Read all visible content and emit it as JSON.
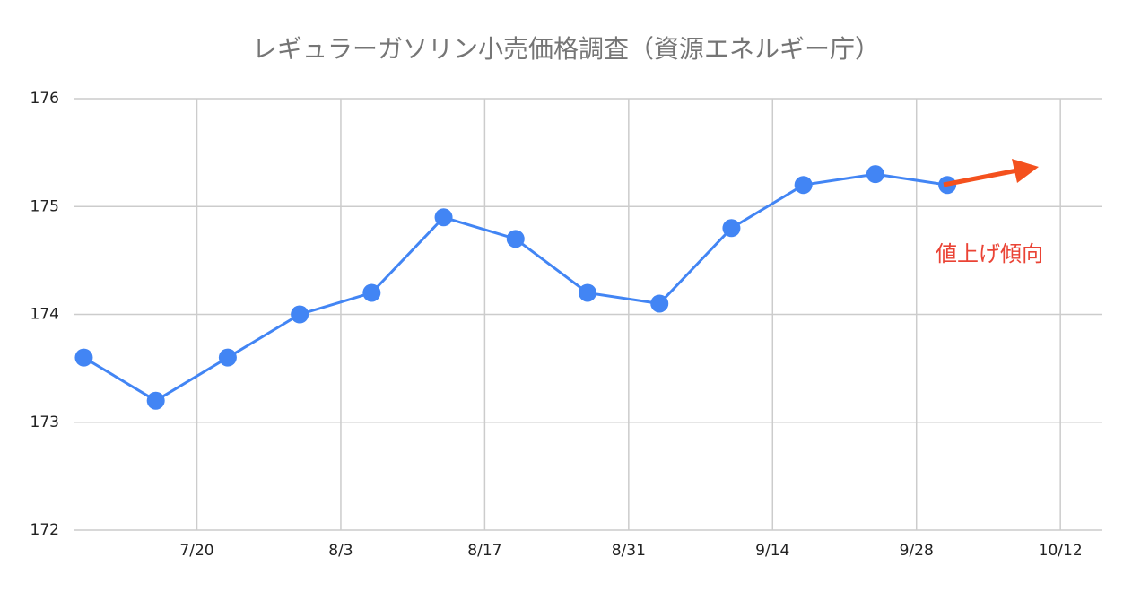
{
  "chart_data": {
    "type": "line",
    "title": "レギュラーガソリン小売価格調査（資源エネルギー庁）",
    "x": [
      "7/9",
      "7/16",
      "7/23",
      "7/30",
      "8/6",
      "8/13",
      "8/20",
      "8/27",
      "9/3",
      "9/10",
      "9/17",
      "9/24",
      "10/1"
    ],
    "values": [
      173.6,
      173.2,
      173.6,
      174.0,
      174.2,
      174.9,
      174.7,
      174.2,
      174.1,
      174.8,
      175.2,
      175.3,
      175.2
    ],
    "color": "#4285f4",
    "xlim": [
      "7/8",
      "10/16"
    ],
    "xticks": [
      "7/20",
      "8/3",
      "8/17",
      "8/31",
      "9/14",
      "9/28",
      "10/12"
    ],
    "ylim": [
      172,
      176
    ],
    "yticks": [
      172,
      173,
      174,
      175,
      176
    ],
    "grid": true,
    "annotation": "値上げ傾向",
    "annotation_color": "#ea4335"
  }
}
